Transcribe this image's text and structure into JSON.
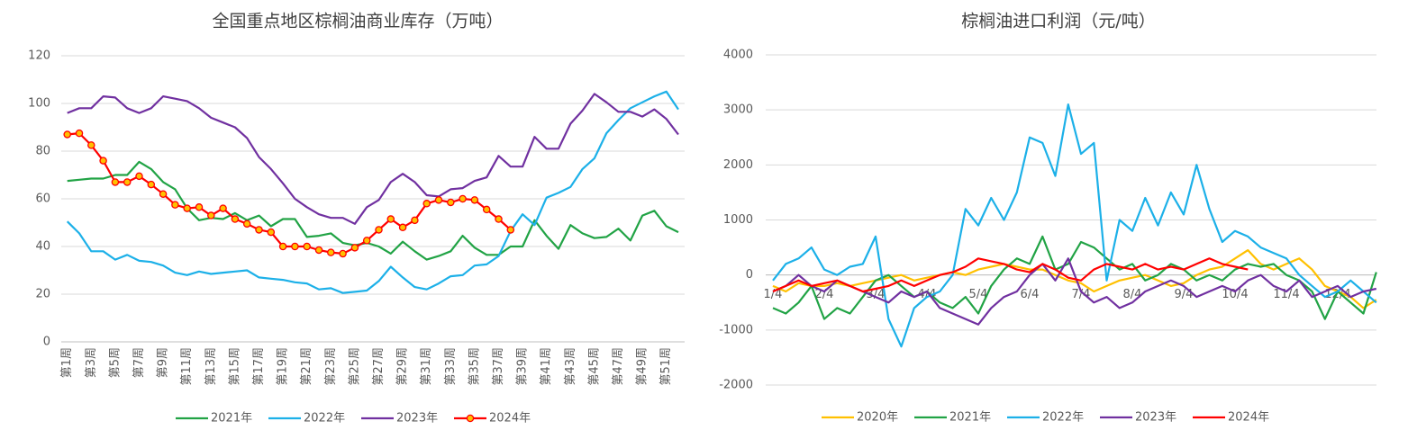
{
  "chart_data": [
    {
      "type": "line",
      "title": "全国重点地区棕榈油商业库存（万吨）",
      "categories": [
        "第1周",
        null,
        "第3周",
        null,
        "第5周",
        null,
        "第7周",
        null,
        "第9周",
        null,
        "第11周",
        null,
        "第13周",
        null,
        "第15周",
        null,
        "第17周",
        null,
        "第19周",
        null,
        "第21周",
        null,
        "第23周",
        null,
        "第25周",
        null,
        "第27周",
        null,
        "第29周",
        null,
        "第31周",
        null,
        "第33周",
        null,
        "第35周",
        null,
        "第37周",
        null,
        "第39周",
        null,
        "第41周",
        null,
        "第43周",
        null,
        "第45周",
        null,
        "第47周",
        null,
        "第49周",
        null,
        "第51周",
        null
      ],
      "ylim": [
        0,
        120
      ],
      "yticks": [
        0,
        20,
        40,
        60,
        80,
        100,
        120
      ],
      "grid": true,
      "series": [
        {
          "name": "2021年",
          "color": "#21a345",
          "values": [
            67.5,
            68,
            68.5,
            68.5,
            70,
            70,
            75.5,
            72.5,
            67,
            64,
            56,
            51,
            52,
            51.5,
            54,
            51,
            53,
            48.5,
            51.5,
            51.5,
            44,
            44.5,
            45.5,
            41.5,
            40.5,
            41.5,
            40,
            37,
            42,
            38,
            34.5,
            36,
            38,
            44.5,
            39.5,
            36.5,
            36.5,
            40,
            40,
            51,
            44.5,
            39,
            49,
            45.5,
            43.5,
            44,
            47.5,
            42.5,
            53,
            55,
            48.5,
            46
          ]
        },
        {
          "name": "2022年",
          "color": "#1cb0e8",
          "values": [
            50.5,
            45.5,
            38,
            38,
            34.5,
            36.5,
            34,
            33.5,
            32,
            29,
            28,
            29.5,
            28.5,
            29,
            29.5,
            30,
            27,
            26.5,
            26,
            25,
            24.5,
            22,
            22.5,
            20.5,
            21,
            21.5,
            25.5,
            31.5,
            27,
            23,
            22,
            24.5,
            27.5,
            28,
            32,
            32.5,
            36,
            46.5,
            53.5,
            49,
            60.5,
            62.5,
            65,
            72.5,
            77,
            87.5,
            93,
            98,
            100.5,
            103,
            105,
            97.5
          ]
        },
        {
          "name": "2023年",
          "color": "#7030a0",
          "values": [
            96,
            98,
            98,
            103,
            102.5,
            98,
            96,
            98,
            103,
            102,
            101,
            98,
            94,
            92,
            90,
            85.5,
            77.5,
            72.5,
            66.5,
            60,
            56.5,
            53.5,
            52,
            52,
            49.5,
            56.5,
            59.5,
            67,
            70.5,
            67,
            61.5,
            61,
            64,
            64.5,
            67.5,
            69,
            78,
            73.5,
            73.5,
            86,
            81,
            81,
            91.5,
            97,
            104,
            100.5,
            96.5,
            96.5,
            94.5,
            97.5,
            93.5,
            87
          ]
        },
        {
          "name": "2024年",
          "color": "#ff0000",
          "marker": true,
          "marker_color": "#ffc000",
          "values": [
            87,
            87.5,
            82.5,
            76,
            67,
            67,
            69.5,
            66,
            62,
            57.5,
            56,
            56.5,
            53,
            56,
            51.5,
            49.5,
            47,
            46,
            40,
            40,
            40,
            38.5,
            37.5,
            37,
            39.5,
            42.5,
            47,
            51.5,
            48,
            51,
            58,
            59.5,
            58.5,
            60,
            59.5,
            55.5,
            51.5,
            47,
            null,
            null,
            null,
            null,
            null,
            null,
            null,
            null,
            null,
            null,
            null,
            null,
            null,
            null
          ]
        }
      ]
    },
    {
      "type": "line",
      "title": "棕榈油进口利润（元/吨）",
      "categories": [
        "1/4",
        null,
        null,
        null,
        "2/4",
        null,
        null,
        null,
        "3/4",
        null,
        null,
        null,
        "4/4",
        null,
        null,
        null,
        "5/4",
        null,
        null,
        null,
        "6/4",
        null,
        null,
        null,
        "7/4",
        null,
        null,
        null,
        "8/4",
        null,
        null,
        null,
        "9/4",
        null,
        null,
        null,
        "10/4",
        null,
        null,
        null,
        "11/4",
        null,
        null,
        null,
        "12/4",
        null,
        null,
        null
      ],
      "ylim": [
        -2000,
        4000
      ],
      "yticks": [
        -2000,
        -1000,
        0,
        1000,
        2000,
        3000,
        4000
      ],
      "grid": true,
      "series": [
        {
          "name": "2020年",
          "color": "#ffc000",
          "values": [
            -200,
            -300,
            -150,
            -200,
            -200,
            -150,
            -200,
            -150,
            -100,
            -50,
            0,
            -100,
            -50,
            0,
            50,
            0,
            100,
            150,
            200,
            150,
            100,
            100,
            0,
            -100,
            -150,
            -300,
            -200,
            -100,
            -50,
            0,
            -100,
            -200,
            -150,
            0,
            100,
            150,
            300,
            450,
            200,
            100,
            200,
            300,
            100,
            -200,
            -300,
            -400,
            -600,
            -450
          ]
        },
        {
          "name": "2021年",
          "color": "#21a345",
          "values": [
            -600,
            -700,
            -500,
            -200,
            -800,
            -600,
            -700,
            -400,
            -100,
            0,
            -200,
            -400,
            -300,
            -500,
            -600,
            -400,
            -700,
            -200,
            100,
            300,
            200,
            700,
            100,
            200,
            600,
            500,
            300,
            100,
            200,
            -100,
            0,
            200,
            100,
            -100,
            0,
            -100,
            100,
            200,
            150,
            200,
            0,
            -100,
            -300,
            -800,
            -300,
            -500,
            -700,
            50
          ]
        },
        {
          "name": "2022年",
          "color": "#1cb0e8",
          "values": [
            -100,
            200,
            300,
            500,
            100,
            0,
            150,
            200,
            700,
            -800,
            -1300,
            -600,
            -400,
            -300,
            0,
            1200,
            900,
            1400,
            1000,
            1500,
            2500,
            2400,
            1800,
            3100,
            2200,
            2400,
            -100,
            1000,
            800,
            1400,
            900,
            1500,
            1100,
            2000,
            1200,
            600,
            800,
            700,
            500,
            400,
            300,
            0,
            -200,
            -400,
            -300,
            -100,
            -300,
            -500
          ]
        },
        {
          "name": "2023年",
          "color": "#7030a0",
          "values": [
            -300,
            -200,
            0,
            -200,
            -300,
            -100,
            -200,
            -300,
            -400,
            -500,
            -300,
            -400,
            -300,
            -600,
            -700,
            -800,
            -900,
            -600,
            -400,
            -300,
            0,
            200,
            -100,
            300,
            -300,
            -500,
            -400,
            -600,
            -500,
            -300,
            -200,
            -100,
            -200,
            -400,
            -300,
            -200,
            -300,
            -100,
            0,
            -200,
            -300,
            -100,
            -400,
            -300,
            -200,
            -400,
            -300,
            -250
          ]
        },
        {
          "name": "2024年",
          "color": "#ff0000",
          "values": [
            -300,
            -200,
            -100,
            -200,
            -150,
            -100,
            -200,
            -300,
            -250,
            -200,
            -100,
            -200,
            -100,
            0,
            50,
            150,
            300,
            250,
            200,
            100,
            50,
            200,
            100,
            -50,
            -100,
            100,
            200,
            150,
            100,
            200,
            100,
            150,
            100,
            200,
            300,
            200,
            150,
            100,
            null,
            null,
            null,
            null,
            null,
            null,
            null,
            null,
            null,
            null
          ]
        }
      ]
    }
  ]
}
